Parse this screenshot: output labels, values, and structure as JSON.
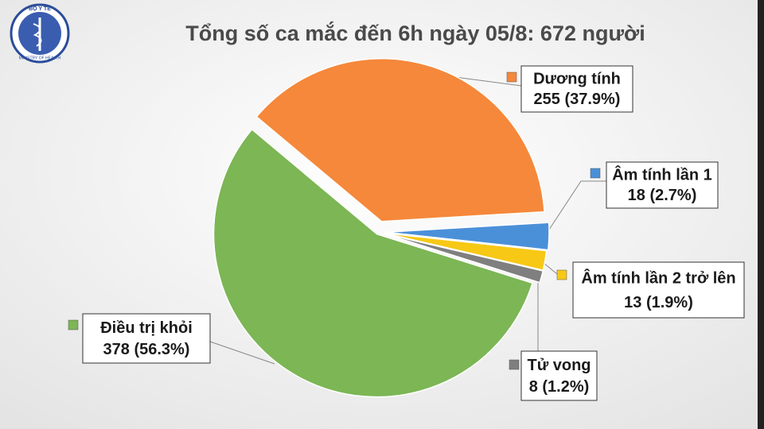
{
  "chart_data": {
    "type": "pie",
    "title": "Tổng số ca mắc đến 6h ngày 05/8: 672 người",
    "logo": {
      "top": "BỘ Y TẾ",
      "bottom": "MINISTRY OF HEALTH"
    },
    "categories": [
      "Dương tính",
      "Âm tính lần 1",
      "Âm tính lần 2 trở lên",
      "Tử vong",
      "Điều trị khỏi"
    ],
    "values": [
      255,
      18,
      13,
      8,
      378
    ],
    "value_labels": [
      "255 (37.9%)",
      "18 (2.7%)",
      "13 (1.9%)",
      "8 (1.2%)",
      "378 (56.3%)"
    ],
    "colors": [
      "#f5883a",
      "#4a90d9",
      "#f7c815",
      "#7f7f7f",
      "#7cb655"
    ]
  }
}
